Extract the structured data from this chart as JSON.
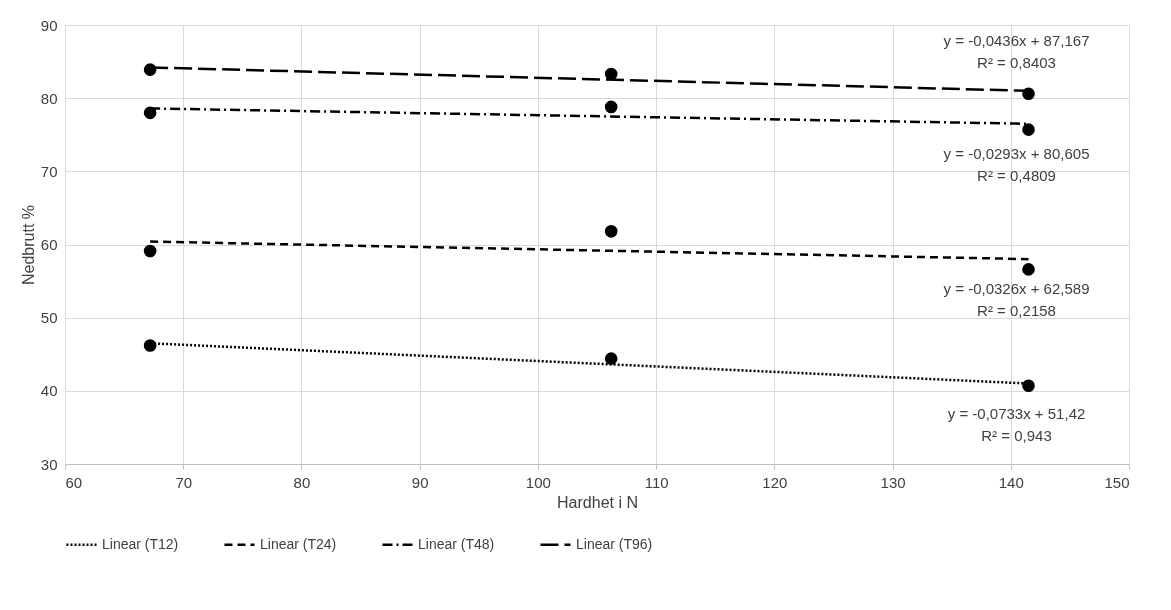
{
  "chart_data": {
    "type": "scatter",
    "xlabel": "Hardhet i N",
    "ylabel": "Nedbrutt %",
    "xlim": [
      60,
      150
    ],
    "xticks": [
      60,
      70,
      80,
      90,
      100,
      110,
      120,
      130,
      140,
      150
    ],
    "ylim": [
      30,
      90
    ],
    "yticks": [
      30,
      40,
      50,
      60,
      70,
      80,
      90
    ],
    "grid": true,
    "legend": "bottom",
    "series": [
      {
        "marker": "circle",
        "color": "#000000",
        "x": [
          67.2,
          106.2,
          141.5
        ],
        "values": [
          46.2,
          44.4,
          40.7
        ]
      },
      {
        "marker": "circle",
        "color": "#000000",
        "x": [
          67.2,
          106.2,
          141.5
        ],
        "values": [
          59.1,
          61.8,
          56.6
        ]
      },
      {
        "marker": "circle",
        "color": "#000000",
        "x": [
          67.2,
          106.2,
          141.5
        ],
        "values": [
          78.0,
          78.8,
          75.7
        ]
      },
      {
        "marker": "circle",
        "color": "#000000",
        "x": [
          67.2,
          106.2,
          141.5
        ],
        "values": [
          83.9,
          83.3,
          80.6
        ]
      },
      {
        "type": "line",
        "name": "Linear (T12)",
        "color": "#000000",
        "line_style": "dotted",
        "x": [
          67.2,
          141.5
        ],
        "values": [
          46.5,
          41.0
        ]
      },
      {
        "type": "line",
        "name": "Linear (T24)",
        "color": "#000000",
        "line_style": "dashed",
        "x": [
          67.2,
          141.5
        ],
        "values": [
          60.4,
          58.0
        ]
      },
      {
        "type": "line",
        "name": "Linear (T48)",
        "color": "#000000",
        "line_style": "dashdot",
        "x": [
          67.2,
          141.5
        ],
        "values": [
          78.6,
          76.5
        ]
      },
      {
        "type": "line",
        "name": "Linear (T96)",
        "color": "#000000",
        "line_style": "longdash",
        "x": [
          67.2,
          141.5
        ],
        "values": [
          84.2,
          81.0
        ]
      }
    ],
    "annotations": [
      "y = -0,0733x + 51,42",
      "R² = 0,943",
      "y = -0,0326x + 62,589",
      "R² = 0,2158",
      "y = -0,0293x + 80,605",
      "R² = 0,4809",
      "y = -0,0436x + 87,167",
      "R² = 0,8403"
    ]
  }
}
